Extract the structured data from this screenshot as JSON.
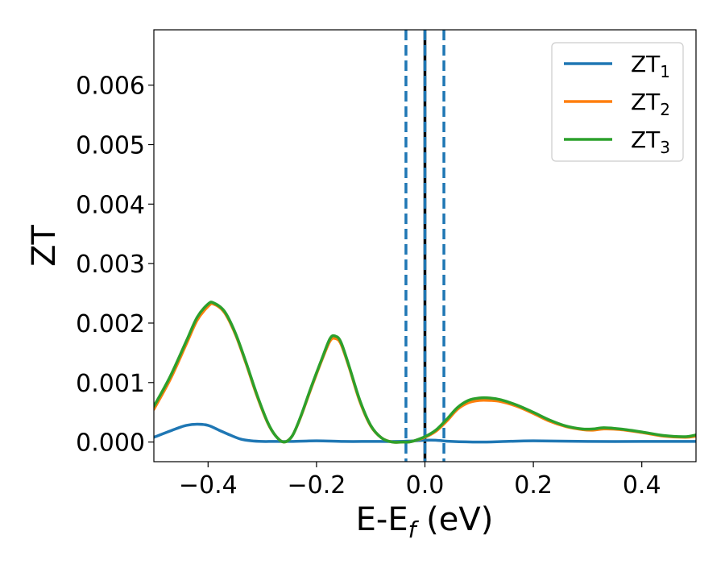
{
  "chart_data": {
    "type": "line",
    "xlabel": "E-E",
    "xlabel_sub": "f",
    "xlabel_unit": " (eV)",
    "ylabel": "ZT",
    "xlim": [
      -0.5,
      0.5
    ],
    "ylim": [
      -0.00033,
      0.00693
    ],
    "xticks": [
      -0.4,
      -0.2,
      0.0,
      0.2,
      0.4
    ],
    "xtick_labels": [
      "−0.4",
      "−0.2",
      "0.0",
      "0.2",
      "0.4"
    ],
    "yticks": [
      0.0,
      0.001,
      0.002,
      0.003,
      0.004,
      0.005,
      0.006
    ],
    "ytick_labels": [
      "0.000",
      "0.001",
      "0.002",
      "0.003",
      "0.004",
      "0.005",
      "0.006"
    ],
    "grid": false,
    "legend_position": "top-right",
    "vlines": [
      {
        "x": -0.035,
        "style": "dashed",
        "color": "#1f77b4"
      },
      {
        "x": 0.0,
        "style": "solid",
        "color": "#000000"
      },
      {
        "x": 0.0,
        "style": "dashed",
        "color": "#1f77b4"
      },
      {
        "x": 0.035,
        "style": "dashed",
        "color": "#1f77b4"
      }
    ],
    "series": [
      {
        "name": "ZT",
        "sub": "1",
        "color": "#1f77b4",
        "x": [
          -0.5,
          -0.46,
          -0.44,
          -0.42,
          -0.4,
          -0.38,
          -0.36,
          -0.34,
          -0.32,
          -0.3,
          -0.28,
          -0.25,
          -0.2,
          -0.15,
          -0.1,
          -0.05,
          -0.02,
          0.0,
          0.02,
          0.05,
          0.1,
          0.15,
          0.2,
          0.3,
          0.4,
          0.5
        ],
        "values": [
          8e-05,
          0.00022,
          0.00028,
          0.0003,
          0.00028,
          0.0002,
          0.00012,
          5e-05,
          2e-05,
          1e-05,
          1e-05,
          1e-05,
          2e-05,
          1e-05,
          1e-05,
          1e-05,
          2e-05,
          3e-05,
          3e-05,
          1e-05,
          0.0,
          1e-05,
          2e-05,
          1e-05,
          1e-05,
          1e-05
        ]
      },
      {
        "name": "ZT",
        "sub": "2",
        "color": "#ff7f0e",
        "x": [
          -0.5,
          -0.47,
          -0.44,
          -0.42,
          -0.4,
          -0.39,
          -0.37,
          -0.35,
          -0.33,
          -0.31,
          -0.29,
          -0.275,
          -0.26,
          -0.245,
          -0.23,
          -0.21,
          -0.19,
          -0.175,
          -0.165,
          -0.155,
          -0.14,
          -0.12,
          -0.1,
          -0.08,
          -0.06,
          -0.04,
          -0.03,
          -0.02,
          0.0,
          0.02,
          0.04,
          0.06,
          0.08,
          0.1,
          0.12,
          0.14,
          0.17,
          0.2,
          0.23,
          0.26,
          0.29,
          0.31,
          0.33,
          0.36,
          0.4,
          0.44,
          0.48,
          0.5
        ],
        "values": [
          0.00055,
          0.00105,
          0.00165,
          0.00205,
          0.00228,
          0.00232,
          0.00218,
          0.00182,
          0.00132,
          0.00078,
          0.00032,
          0.0001,
          0.0,
          0.0001,
          0.0004,
          0.0009,
          0.00138,
          0.0017,
          0.00174,
          0.00165,
          0.00126,
          0.00068,
          0.00027,
          7e-05,
          0.0,
          0.0,
          0.0,
          2e-05,
          8e-05,
          0.00018,
          0.00035,
          0.00055,
          0.00066,
          0.0007,
          0.0007,
          0.00068,
          0.0006,
          0.00048,
          0.00035,
          0.00026,
          0.00021,
          0.0002,
          0.00022,
          0.00021,
          0.00016,
          0.0001,
          8e-05,
          0.0001
        ]
      },
      {
        "name": "ZT",
        "sub": "3",
        "color": "#2ca02c",
        "x": [
          -0.5,
          -0.47,
          -0.44,
          -0.42,
          -0.4,
          -0.39,
          -0.37,
          -0.35,
          -0.33,
          -0.31,
          -0.29,
          -0.275,
          -0.26,
          -0.245,
          -0.23,
          -0.21,
          -0.19,
          -0.175,
          -0.165,
          -0.155,
          -0.14,
          -0.12,
          -0.1,
          -0.08,
          -0.06,
          -0.04,
          -0.03,
          -0.02,
          0.0,
          0.02,
          0.04,
          0.06,
          0.08,
          0.1,
          0.12,
          0.14,
          0.17,
          0.2,
          0.23,
          0.26,
          0.29,
          0.31,
          0.33,
          0.36,
          0.4,
          0.44,
          0.48,
          0.5
        ],
        "values": [
          0.0006,
          0.0011,
          0.0017,
          0.0021,
          0.00232,
          0.00234,
          0.0022,
          0.00184,
          0.00134,
          0.0008,
          0.00033,
          0.0001,
          0.0,
          0.0001,
          0.00041,
          0.00092,
          0.0014,
          0.00174,
          0.00178,
          0.00168,
          0.00128,
          0.0007,
          0.00028,
          7e-05,
          0.0,
          0.0,
          0.0,
          2e-05,
          9e-05,
          0.0002,
          0.00038,
          0.00058,
          0.0007,
          0.00074,
          0.00074,
          0.00071,
          0.00062,
          0.0005,
          0.00037,
          0.00027,
          0.00022,
          0.00022,
          0.00024,
          0.00022,
          0.00017,
          0.00011,
          9e-05,
          0.00012
        ]
      }
    ]
  }
}
